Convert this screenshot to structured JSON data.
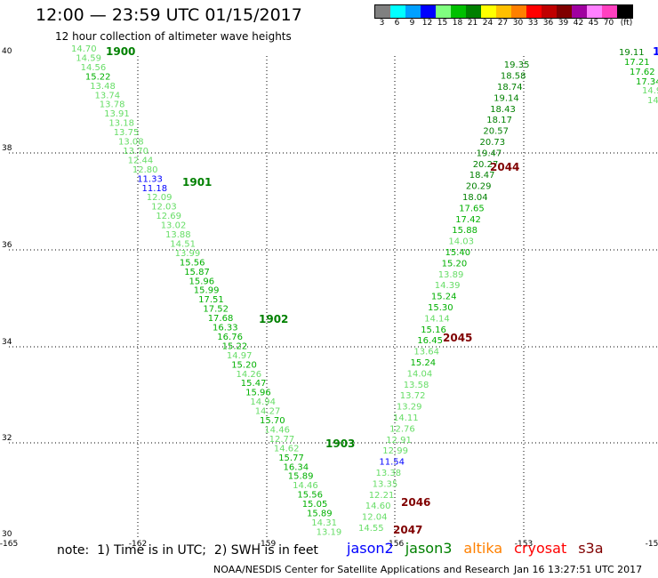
{
  "header": {
    "title": "12:00 — 23:59 UTC 01/15/2017",
    "subtitle": "12 hour collection of altimeter wave heights"
  },
  "legend": {
    "colors": [
      "#808080",
      "#00ffff",
      "#00a0ff",
      "#0000ff",
      "#80ff80",
      "#00c000",
      "#008000",
      "#ffff00",
      "#ffc000",
      "#ff8000",
      "#ff0000",
      "#c00000",
      "#800000",
      "#a000a0",
      "#ff80ff",
      "#ff40c0",
      "#000000"
    ],
    "labels": [
      "3",
      "6",
      "9",
      "12",
      "15",
      "18",
      "21",
      "24",
      "27",
      "30",
      "33",
      "36",
      "39",
      "42",
      "45",
      "70",
      "(ft)"
    ]
  },
  "axes": {
    "lat_labels": [
      "40",
      "38",
      "36",
      "34",
      "32",
      "30"
    ],
    "lon_labels": [
      "-165",
      "-162",
      "-159",
      "-156",
      "-153",
      "-15"
    ]
  },
  "tracks": [
    {
      "values": [
        "14.70",
        "14.59",
        "14.56",
        "15.22",
        "13.48",
        "13.74",
        "13.78",
        "13.91",
        "13.18",
        "13.75",
        "13.08",
        "13.70",
        "12.44",
        "12.80",
        "11.33",
        "11.18",
        "12.09",
        "12.03",
        "12.69",
        "13.02",
        "13.88",
        "14.51",
        "13.99",
        "15.56",
        "15.87",
        "15.96",
        "15.99",
        "17.51",
        "17.52",
        "17.68",
        "16.33",
        "16.76",
        "15.22",
        "14.97",
        "15.20",
        "14.26",
        "15.47",
        "15.96",
        "14.94",
        "14.27",
        "15.70",
        "14.46",
        "12.77",
        "14.62",
        "15.77",
        "16.34",
        "15.89",
        "14.46",
        "15.56",
        "15.05",
        "15.89",
        "14.31",
        "13.19"
      ],
      "time_labels": [
        "1900",
        "1901",
        "1902",
        "1903"
      ]
    },
    {
      "values": [
        "14.55",
        "12.04",
        "14.60",
        "12.21",
        "13.35",
        "13.38",
        "11.54",
        "12.99",
        "12.91",
        "12.76",
        "14.11",
        "13.29",
        "13.72",
        "13.58",
        "14.04",
        "15.24",
        "13.64",
        "16.45",
        "15.16",
        "14.14",
        "15.30",
        "15.24",
        "14.39",
        "13.89",
        "15.20",
        "15.40",
        "14.03",
        "15.88",
        "17.42",
        "17.65",
        "18.04",
        "20.29",
        "18.47",
        "20.27",
        "19.47",
        "20.73",
        "20.57",
        "18.17",
        "18.43",
        "19.14",
        "18.74",
        "18.58",
        "19.35"
      ],
      "time_labels": [
        "2047",
        "2046",
        "2045",
        "2044"
      ]
    },
    {
      "values": [
        "19.11",
        "17.21",
        "17.62",
        "17.34",
        "14.9",
        "14.8"
      ],
      "time_labels": [
        "1"
      ]
    }
  ],
  "footer": {
    "note": "note:  1) Time is in UTC;  2) SWH is in feet",
    "satellites": [
      "jason2",
      "jason3",
      "altika",
      "cryosat",
      "s3a"
    ],
    "satellite_colors": [
      "#0000ff",
      "#008000",
      "#ff8000",
      "#ff0000",
      "#800000"
    ],
    "credit": "NOAA/NESDIS Center for Satellite Applications and Research",
    "timestamp": "Jan 16 13:27:51 UTC 2017"
  }
}
